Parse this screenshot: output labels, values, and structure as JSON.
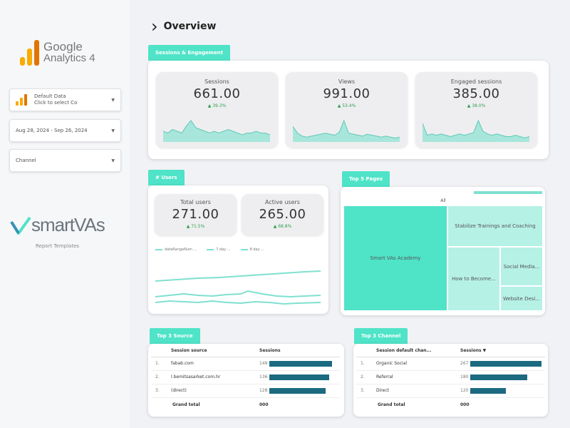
{
  "sidebar": {
    "logo": {
      "line1": "Google",
      "line2": "Analytics 4",
      "colors": [
        "#f9ab00",
        "#e37400"
      ]
    },
    "data_control": {
      "label_line1": "Default Data",
      "label_line2": "Click to select Co"
    },
    "date_range": {
      "label": "Aug 28, 2024 - Sep 26, 2024"
    },
    "channel_filter": {
      "label": "Channel"
    },
    "brand": {
      "name": "smartVAs",
      "sub": "Report Templates"
    }
  },
  "header": {
    "title": "Overview"
  },
  "sections": {
    "sessions_engagement": "Sessions & Engagement",
    "users": "# Users",
    "top_pages": "Top 5 Pages",
    "top_source": "Top 3 Source",
    "top_channel": "Top 3 Channel"
  },
  "kpis": [
    {
      "label": "Sessions",
      "value": "661.00",
      "change": "▲ 39.3%",
      "spark": [
        6,
        5,
        7,
        6,
        5,
        9,
        12,
        8,
        7,
        6,
        5,
        6,
        5,
        6,
        7,
        6,
        5,
        4,
        5,
        5,
        6,
        5,
        5,
        4
      ]
    },
    {
      "label": "Views",
      "value": "991.00",
      "change": "▲ 53.4%",
      "spark": [
        16,
        9,
        6,
        5,
        6,
        7,
        8,
        9,
        8,
        7,
        10,
        22,
        9,
        8,
        7,
        6,
        8,
        7,
        6,
        5,
        6,
        5,
        4,
        5
      ]
    },
    {
      "label": "Engaged sessions",
      "value": "385.00",
      "change": "▲ 38.0%",
      "spark": [
        14,
        5,
        6,
        5,
        6,
        5,
        4,
        5,
        6,
        5,
        6,
        7,
        16,
        8,
        6,
        5,
        6,
        5,
        4,
        4,
        5,
        4,
        3,
        4
      ]
    }
  ],
  "user_kpis": [
    {
      "label": "Total users",
      "value": "271.00",
      "change": "▲ 71.5%"
    },
    {
      "label": "Active users",
      "value": "265.00",
      "change": "▲ 68.8%"
    }
  ],
  "user_chart": {
    "legend": [
      "dateRangeNum ...",
      "7 day ...",
      "8 day ..."
    ],
    "series_color": "#7fe0d0"
  },
  "top_pages": {
    "header": "All",
    "items": [
      "Smart VAs Academy",
      "Stabilize Trainings and Coaching",
      "How to Become...",
      "Social Media...",
      "Website Desi..."
    ],
    "colors": [
      "#4fe3c8",
      "#b6f1e6"
    ]
  },
  "top_source": {
    "headers": [
      "Session source",
      "Sessions"
    ],
    "rows": [
      {
        "n": "1.",
        "name": "fabab.com",
        "value": "149",
        "pct": 1.0
      },
      {
        "n": "2.",
        "name": "l.bemitsasarket.com.hr",
        "value": "136",
        "pct": 0.95
      },
      {
        "n": "3.",
        "name": "(direct)",
        "value": "128",
        "pct": 0.9
      }
    ],
    "grand_total_label": "Grand total",
    "grand_total_value": "000"
  },
  "top_channel": {
    "headers": [
      "Session default chan...",
      "Sessions ▼"
    ],
    "rows": [
      {
        "n": "1.",
        "name": "Organic Social",
        "value": "267",
        "pct": 1.0
      },
      {
        "n": "2.",
        "name": "Referral",
        "value": "180",
        "pct": 0.8
      },
      {
        "n": "3.",
        "name": "Direct",
        "value": "120",
        "pct": 0.5
      }
    ],
    "grand_total_label": "Grand total",
    "grand_total_value": "000"
  }
}
